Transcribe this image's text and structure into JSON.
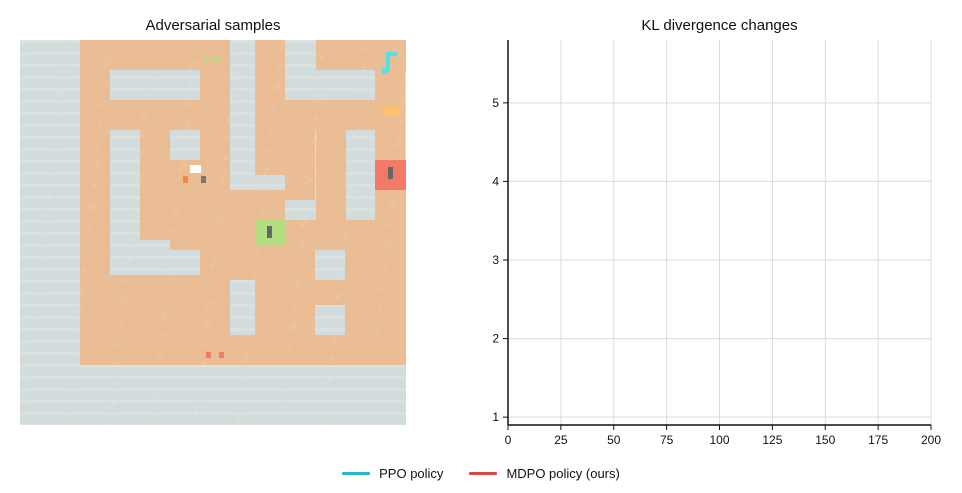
{
  "left_panel": {
    "title": "Adversarial samples"
  },
  "chart_data": {
    "type": "line",
    "title": "KL divergence changes",
    "xlabel": "",
    "ylabel": "",
    "xlim": [
      0,
      200
    ],
    "ylim": [
      0.9,
      5.8
    ],
    "x_ticks": [
      0,
      25,
      50,
      75,
      100,
      125,
      150,
      175,
      200
    ],
    "y_ticks": [
      1,
      2,
      3,
      4,
      5
    ],
    "grid": true,
    "legend_position": "bottom-center",
    "series": [
      {
        "name": "PPO policy",
        "color": "#22b8d0",
        "x": [],
        "y": []
      },
      {
        "name": "MDPO policy (ours)",
        "color": "#e04848",
        "x": [],
        "y": []
      }
    ]
  },
  "colors": {
    "wall": "#d3dcdc",
    "floor": "#eabd94",
    "agent": "#55e0e6",
    "goal_red": "#f47a68",
    "goal_green": "#b5dd82",
    "item_orange": "#fcc06f",
    "grid": "#d5dcdc",
    "axis": "#111111"
  }
}
